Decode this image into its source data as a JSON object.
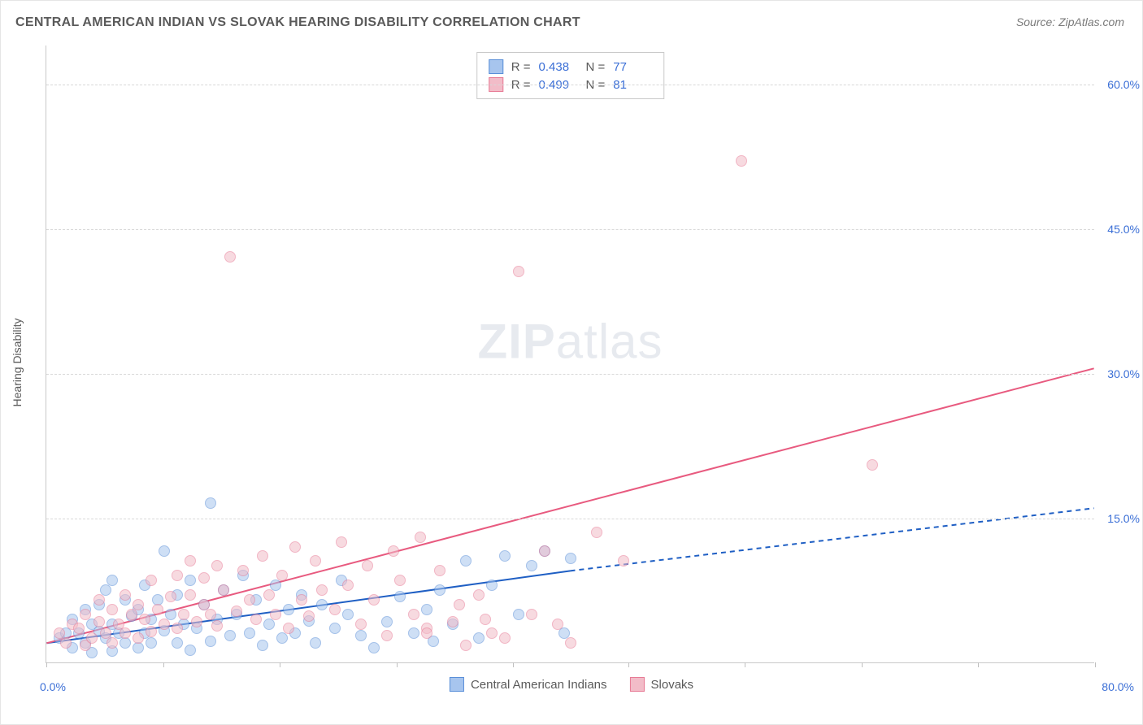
{
  "chart": {
    "type": "scatter",
    "title": "CENTRAL AMERICAN INDIAN VS SLOVAK HEARING DISABILITY CORRELATION CHART",
    "source_label": "Source: ZipAtlas.com",
    "y_axis_title": "Hearing Disability",
    "watermark_bold": "ZIP",
    "watermark_light": "atlas",
    "background_color": "#ffffff",
    "grid_color": "#d8d8d8",
    "axis_color": "#c9c9c9",
    "tick_label_color": "#3b6fd6",
    "text_color": "#5a5a5a",
    "title_fontsize": 16,
    "label_fontsize": 14,
    "xlim": [
      0,
      80
    ],
    "ylim": [
      0,
      64
    ],
    "y_ticks": [
      15,
      30,
      45,
      60
    ],
    "y_tick_labels": [
      "15.0%",
      "30.0%",
      "45.0%",
      "60.0%"
    ],
    "x_ticks": [
      0,
      8.9,
      17.8,
      26.7,
      35.6,
      44.4,
      53.3,
      62.2,
      71.1,
      80
    ],
    "x_min_label": "0.0%",
    "x_max_label": "80.0%",
    "marker_size": 14,
    "marker_opacity": 0.55,
    "line_width": 2,
    "series": [
      {
        "name": "Central American Indians",
        "color_fill": "#a7c5ee",
        "color_stroke": "#5a8fd8",
        "line_color": "#1f5fc4",
        "R": "0.438",
        "N": "77",
        "trend": {
          "x1": 0,
          "y1": 2.0,
          "x2_solid": 40,
          "y2_solid": 9.5,
          "x2_dashed": 80,
          "y2_dashed": 16.0
        },
        "points": [
          [
            1,
            2.5
          ],
          [
            1.5,
            3
          ],
          [
            2,
            1.5
          ],
          [
            2,
            4.5
          ],
          [
            2.5,
            3
          ],
          [
            3,
            2
          ],
          [
            3,
            5.5
          ],
          [
            3.5,
            1
          ],
          [
            3.5,
            4
          ],
          [
            4,
            3.2
          ],
          [
            4,
            6
          ],
          [
            4.5,
            2.5
          ],
          [
            4.5,
            7.5
          ],
          [
            5,
            1.2
          ],
          [
            5,
            4
          ],
          [
            5,
            8.5
          ],
          [
            5.5,
            3
          ],
          [
            6,
            2
          ],
          [
            6,
            6.5
          ],
          [
            6.5,
            4.8
          ],
          [
            7,
            1.5
          ],
          [
            7,
            5.5
          ],
          [
            7.5,
            3
          ],
          [
            7.5,
            8
          ],
          [
            8,
            2
          ],
          [
            8,
            4.5
          ],
          [
            8.5,
            6.5
          ],
          [
            9,
            3.3
          ],
          [
            9,
            11.5
          ],
          [
            9.5,
            5
          ],
          [
            10,
            2
          ],
          [
            10,
            7
          ],
          [
            10.5,
            4
          ],
          [
            11,
            1.3
          ],
          [
            11,
            8.5
          ],
          [
            11.5,
            3.5
          ],
          [
            12,
            6
          ],
          [
            12.5,
            2.2
          ],
          [
            12.5,
            16.5
          ],
          [
            13,
            4.5
          ],
          [
            13.5,
            7.5
          ],
          [
            14,
            2.8
          ],
          [
            14.5,
            5
          ],
          [
            15,
            9
          ],
          [
            15.5,
            3
          ],
          [
            16,
            6.5
          ],
          [
            16.5,
            1.8
          ],
          [
            17,
            4
          ],
          [
            17.5,
            8
          ],
          [
            18,
            2.5
          ],
          [
            18.5,
            5.5
          ],
          [
            19,
            3
          ],
          [
            19.5,
            7
          ],
          [
            20,
            4.3
          ],
          [
            20.5,
            2
          ],
          [
            21,
            6
          ],
          [
            22,
            3.5
          ],
          [
            22.5,
            8.5
          ],
          [
            23,
            5
          ],
          [
            24,
            2.8
          ],
          [
            25,
            1.5
          ],
          [
            26,
            4.2
          ],
          [
            27,
            6.8
          ],
          [
            28,
            3
          ],
          [
            29,
            5.5
          ],
          [
            29.5,
            2.2
          ],
          [
            30,
            7.5
          ],
          [
            31,
            4
          ],
          [
            32,
            10.5
          ],
          [
            33,
            2.5
          ],
          [
            34,
            8
          ],
          [
            35,
            11
          ],
          [
            36,
            5
          ],
          [
            37,
            10
          ],
          [
            38,
            11.5
          ],
          [
            39.5,
            3
          ],
          [
            40,
            10.8
          ]
        ]
      },
      {
        "name": "Slovaks",
        "color_fill": "#f2bcc8",
        "color_stroke": "#e77a95",
        "line_color": "#e85a7f",
        "R": "0.499",
        "N": "81",
        "trend": {
          "x1": 0,
          "y1": 2.0,
          "x2_solid": 80,
          "y2_solid": 30.5,
          "x2_dashed": 80,
          "y2_dashed": 30.5
        },
        "points": [
          [
            1,
            3
          ],
          [
            1.5,
            2
          ],
          [
            2,
            4
          ],
          [
            2.5,
            3.5
          ],
          [
            3,
            1.8
          ],
          [
            3,
            5
          ],
          [
            3.5,
            2.5
          ],
          [
            4,
            4.2
          ],
          [
            4,
            6.5
          ],
          [
            4.5,
            3
          ],
          [
            5,
            2
          ],
          [
            5,
            5.5
          ],
          [
            5.5,
            4
          ],
          [
            6,
            3
          ],
          [
            6,
            7
          ],
          [
            6.5,
            5
          ],
          [
            7,
            2.5
          ],
          [
            7,
            6
          ],
          [
            7.5,
            4.5
          ],
          [
            8,
            3.2
          ],
          [
            8,
            8.5
          ],
          [
            8.5,
            5.5
          ],
          [
            9,
            4
          ],
          [
            9.5,
            6.8
          ],
          [
            10,
            3.5
          ],
          [
            10,
            9
          ],
          [
            10.5,
            5
          ],
          [
            11,
            7
          ],
          [
            11,
            10.5
          ],
          [
            11.5,
            4.2
          ],
          [
            12,
            6
          ],
          [
            12,
            8.8
          ],
          [
            12.5,
            5
          ],
          [
            13,
            3.8
          ],
          [
            13,
            10
          ],
          [
            13.5,
            7.5
          ],
          [
            14,
            42
          ],
          [
            14.5,
            5.3
          ],
          [
            15,
            9.5
          ],
          [
            15.5,
            6.5
          ],
          [
            16,
            4.5
          ],
          [
            16.5,
            11
          ],
          [
            17,
            7
          ],
          [
            17.5,
            5
          ],
          [
            18,
            9
          ],
          [
            18.5,
            3.5
          ],
          [
            19,
            12
          ],
          [
            19.5,
            6.5
          ],
          [
            20,
            4.8
          ],
          [
            20.5,
            10.5
          ],
          [
            21,
            7.5
          ],
          [
            22,
            5.5
          ],
          [
            22.5,
            12.5
          ],
          [
            23,
            8
          ],
          [
            24,
            4
          ],
          [
            24.5,
            10
          ],
          [
            25,
            6.5
          ],
          [
            26,
            2.8
          ],
          [
            26.5,
            11.5
          ],
          [
            27,
            8.5
          ],
          [
            28,
            5
          ],
          [
            28.5,
            13
          ],
          [
            29,
            3.5
          ],
          [
            30,
            9.5
          ],
          [
            31,
            4.2
          ],
          [
            32,
            1.8
          ],
          [
            33,
            7
          ],
          [
            34,
            3
          ],
          [
            35,
            2.5
          ],
          [
            36,
            40.5
          ],
          [
            37,
            5
          ],
          [
            38,
            11.5
          ],
          [
            39,
            4
          ],
          [
            40,
            2
          ],
          [
            42,
            13.5
          ],
          [
            44,
            10.5
          ],
          [
            53,
            52
          ],
          [
            63,
            20.5
          ],
          [
            29,
            3
          ],
          [
            31.5,
            6
          ],
          [
            33.5,
            4.5
          ]
        ]
      }
    ],
    "legend": {
      "items": [
        {
          "label": "Central American Indians",
          "series_index": 0
        },
        {
          "label": "Slovaks",
          "series_index": 1
        }
      ]
    }
  }
}
